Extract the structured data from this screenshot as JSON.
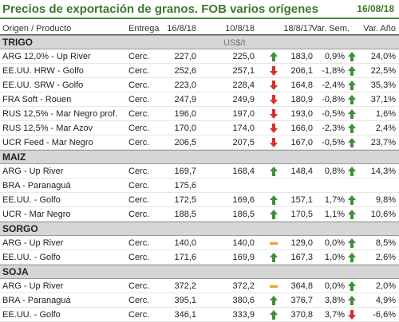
{
  "title": "Precios de exportación de granos. FOB varios orígenes",
  "date": "16/08/18",
  "headers": {
    "origen": "Origen / Producto",
    "entrega": "Entrega",
    "c1": "16/8/18",
    "c2": "10/8/18",
    "c3": "18/8/17",
    "sem": "Var. Sem.",
    "anio": "Var. Año"
  },
  "colors": {
    "up": "#3f8f3a",
    "down": "#d2322d",
    "flat": "#f0a020",
    "accent": "#3b7a2b"
  },
  "sections": [
    {
      "name": "TRIGO",
      "unit": "US$/t",
      "rows": [
        {
          "name": "ARG 12,0% - Up River",
          "entrega": "Cerc.",
          "v1": "227,0",
          "v2": "225,0",
          "v3": "183,0",
          "a1": "up",
          "sem": "0,9%",
          "a2": "up",
          "anio": "24,0%"
        },
        {
          "name": "EE.UU. HRW - Golfo",
          "entrega": "Cerc.",
          "v1": "252,6",
          "v2": "257,1",
          "v3": "206,1",
          "a1": "down",
          "sem": "-1,8%",
          "a2": "up",
          "anio": "22,5%"
        },
        {
          "name": "EE.UU. SRW - Golfo",
          "entrega": "Cerc.",
          "v1": "223,0",
          "v2": "228,4",
          "v3": "164,8",
          "a1": "down",
          "sem": "-2,4%",
          "a2": "up",
          "anio": "35,3%"
        },
        {
          "name": "FRA Soft - Rouen",
          "entrega": "Cerc.",
          "v1": "247,9",
          "v2": "249,9",
          "v3": "180,9",
          "a1": "down",
          "sem": "-0,8%",
          "a2": "up",
          "anio": "37,1%"
        },
        {
          "name": "RUS 12,5% - Mar Negro prof.",
          "entrega": "Cerc.",
          "v1": "196,0",
          "v2": "197,0",
          "v3": "193,0",
          "a1": "down",
          "sem": "-0,5%",
          "a2": "up",
          "anio": "1,6%"
        },
        {
          "name": "RUS 12,5% - Mar Azov",
          "entrega": "Cerc.",
          "v1": "170,0",
          "v2": "174,0",
          "v3": "166,0",
          "a1": "down",
          "sem": "-2,3%",
          "a2": "up",
          "anio": "2,4%"
        },
        {
          "name": "UCR Feed - Mar Negro",
          "entrega": "Cerc.",
          "v1": "206,5",
          "v2": "207,5",
          "v3": "167,0",
          "a1": "down",
          "sem": "-0,5%",
          "a2": "up",
          "anio": "23,7%"
        }
      ]
    },
    {
      "name": "MAIZ",
      "unit": "",
      "rows": [
        {
          "name": "ARG - Up River",
          "entrega": "Cerc.",
          "v1": "169,7",
          "v2": "168,4",
          "v3": "148,4",
          "a1": "up",
          "sem": "0,8%",
          "a2": "up",
          "anio": "14,3%"
        },
        {
          "name": "BRA - Paranaguá",
          "entrega": "Cerc.",
          "v1": "175,6",
          "v2": "",
          "v3": "",
          "a1": "",
          "sem": "",
          "a2": "",
          "anio": ""
        },
        {
          "name": "EE.UU. - Golfo",
          "entrega": "Cerc.",
          "v1": "172,5",
          "v2": "169,6",
          "v3": "157,1",
          "a1": "up",
          "sem": "1,7%",
          "a2": "up",
          "anio": "9,8%"
        },
        {
          "name": "UCR - Mar Negro",
          "entrega": "Cerc.",
          "v1": "188,5",
          "v2": "186,5",
          "v3": "170,5",
          "a1": "up",
          "sem": "1,1%",
          "a2": "up",
          "anio": "10,6%"
        }
      ]
    },
    {
      "name": "SORGO",
      "unit": "",
      "rows": [
        {
          "name": "ARG - Up River",
          "entrega": "Cerc.",
          "v1": "140,0",
          "v2": "140,0",
          "v3": "129,0",
          "a1": "flat",
          "sem": "0,0%",
          "a2": "up",
          "anio": "8,5%"
        },
        {
          "name": "EE.UU. - Golfo",
          "entrega": "Cerc.",
          "v1": "171,6",
          "v2": "169,9",
          "v3": "167,3",
          "a1": "up",
          "sem": "1,0%",
          "a2": "up",
          "anio": "2,6%"
        }
      ]
    },
    {
      "name": "SOJA",
      "unit": "",
      "rows": [
        {
          "name": "ARG - Up River",
          "entrega": "Cerc.",
          "v1": "372,2",
          "v2": "372,2",
          "v3": "364,8",
          "a1": "flat",
          "sem": "0,0%",
          "a2": "up",
          "anio": "2,0%"
        },
        {
          "name": "BRA - Paranaguá",
          "entrega": "Cerc.",
          "v1": "395,1",
          "v2": "380,6",
          "v3": "376,7",
          "a1": "up",
          "sem": "3,8%",
          "a2": "up",
          "anio": "4,9%"
        },
        {
          "name": "EE.UU. - Golfo",
          "entrega": "Cerc.",
          "v1": "346,1",
          "v2": "333,9",
          "v3": "370,8",
          "a1": "up",
          "sem": "3,7%",
          "a2": "down",
          "anio": "-6,6%"
        }
      ]
    }
  ]
}
